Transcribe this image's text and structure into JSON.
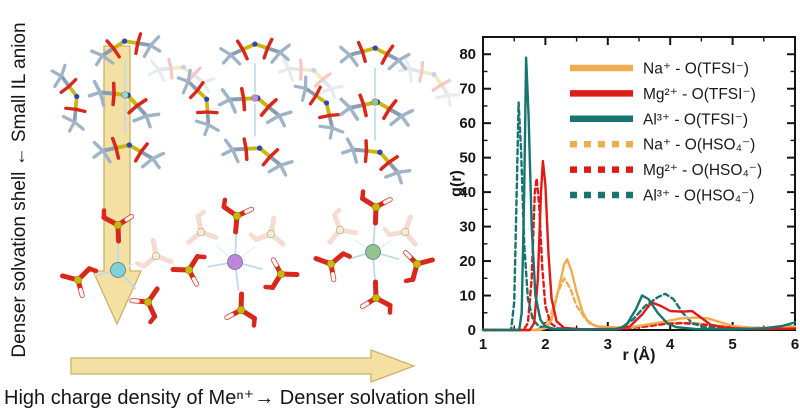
{
  "left_panel": {
    "vertical_label": "Denser solvation shell ← Small IL anion",
    "bottom_caption": "High charge density of Meⁿ⁺→ Denser solvation shell",
    "arrow_fill": "#F5E0A3",
    "arrow_stroke": "#C9B26A",
    "atom_colors": {
      "O": "#D7281B",
      "S": "#C7B70E",
      "N": "#2A46BE",
      "C": "#9FB4C6",
      "C_dark": "#87502F",
      "H": "#F4F4F4",
      "bond": "#BFD9EA",
      "ghost_red": "#F2CFC4",
      "ghost_yellow": "#F0E3CE"
    },
    "clusters": {
      "top_row": [
        {
          "name": "na-tfsi-cluster",
          "cation": "Na+",
          "anion": "TFSI-",
          "center_color": "#8FD8DC"
        },
        {
          "name": "mg-tfsi-cluster",
          "cation": "Mg2+",
          "anion": "TFSI-",
          "center_color": "#C18ADD"
        },
        {
          "name": "al-tfsi-cluster",
          "cation": "Al3+",
          "anion": "TFSI-",
          "center_color": "#93C791"
        }
      ],
      "bottom_row": [
        {
          "name": "na-hso4-cluster",
          "cation": "Na+",
          "anion": "HSO4-",
          "center_color": "#7ED2D8"
        },
        {
          "name": "mg-hso4-cluster",
          "cation": "Mg2+",
          "anion": "HSO4-",
          "center_color": "#BD85DC"
        },
        {
          "name": "al-hso4-cluster",
          "cation": "Al3+",
          "anion": "HSO4-",
          "center_color": "#92C48F"
        }
      ]
    }
  },
  "chart_data": {
    "type": "line",
    "title": "",
    "xlabel": "r (Å)",
    "ylabel": "g(r)",
    "xlim": [
      1,
      6
    ],
    "ylim": [
      0,
      85
    ],
    "xticks": [
      1,
      2,
      3,
      4,
      5,
      6
    ],
    "yticks": [
      0,
      10,
      20,
      30,
      40,
      50,
      60,
      70,
      80
    ],
    "grid": false,
    "legend_position": "upper right",
    "frame_color": "#141414",
    "series": [
      {
        "id": "na_tfsi",
        "label": "Na⁺ - O(TFSI⁻)",
        "color": "#EFAC51",
        "style": "solid",
        "points": [
          [
            1,
            0
          ],
          [
            1.9,
            0
          ],
          [
            2.0,
            0.5
          ],
          [
            2.1,
            3
          ],
          [
            2.2,
            11
          ],
          [
            2.3,
            19
          ],
          [
            2.35,
            20.5
          ],
          [
            2.42,
            17
          ],
          [
            2.5,
            11
          ],
          [
            2.6,
            5
          ],
          [
            2.7,
            2
          ],
          [
            2.85,
            1
          ],
          [
            3.1,
            0.7
          ],
          [
            3.4,
            0.9
          ],
          [
            3.7,
            1.8
          ],
          [
            3.95,
            2.6
          ],
          [
            4.15,
            3.3
          ],
          [
            4.4,
            3.6
          ],
          [
            4.6,
            3.4
          ],
          [
            4.8,
            2.3
          ],
          [
            5.0,
            1.2
          ],
          [
            5.3,
            0.6
          ],
          [
            5.6,
            0.6
          ],
          [
            6,
            1.0
          ]
        ]
      },
      {
        "id": "mg_tfsi",
        "label": "Mg²⁺ - O(TFSI⁻)",
        "color": "#DE1B18",
        "style": "solid",
        "points": [
          [
            1,
            0
          ],
          [
            1.75,
            0
          ],
          [
            1.82,
            2
          ],
          [
            1.88,
            15
          ],
          [
            1.93,
            40
          ],
          [
            1.96,
            49
          ],
          [
            2.0,
            42
          ],
          [
            2.05,
            22
          ],
          [
            2.1,
            9
          ],
          [
            2.18,
            2.5
          ],
          [
            2.3,
            0.6
          ],
          [
            2.6,
            0.2
          ],
          [
            3.1,
            0.3
          ],
          [
            3.35,
            1
          ],
          [
            3.55,
            4.5
          ],
          [
            3.7,
            8
          ],
          [
            3.85,
            7
          ],
          [
            4.0,
            5.5
          ],
          [
            4.2,
            5.3
          ],
          [
            4.35,
            5.5
          ],
          [
            4.5,
            3.5
          ],
          [
            4.65,
            1.5
          ],
          [
            4.9,
            0.6
          ],
          [
            5.3,
            0.3
          ],
          [
            6,
            0.4
          ]
        ]
      },
      {
        "id": "al_tfsi",
        "label": "Al³⁺ - O(TFSI⁻)",
        "color": "#17746F",
        "style": "solid",
        "points": [
          [
            1,
            0
          ],
          [
            1.58,
            0
          ],
          [
            1.62,
            5
          ],
          [
            1.66,
            40
          ],
          [
            1.69,
            79
          ],
          [
            1.73,
            62
          ],
          [
            1.78,
            30
          ],
          [
            1.84,
            10
          ],
          [
            1.92,
            3
          ],
          [
            2.0,
            1
          ],
          [
            2.15,
            0.3
          ],
          [
            2.6,
            0.1
          ],
          [
            3.15,
            0.2
          ],
          [
            3.3,
            1.5
          ],
          [
            3.45,
            6
          ],
          [
            3.55,
            10
          ],
          [
            3.65,
            9
          ],
          [
            3.8,
            5
          ],
          [
            3.95,
            2
          ],
          [
            4.1,
            0.8
          ],
          [
            4.4,
            0.3
          ],
          [
            5.0,
            0.2
          ],
          [
            5.5,
            0.5
          ],
          [
            5.8,
            1.2
          ],
          [
            6,
            2.2
          ]
        ]
      },
      {
        "id": "na_hso4",
        "label": "Na⁺ - O(HSO₄⁻)",
        "color": "#EFAC51",
        "style": "dashed",
        "points": [
          [
            1,
            0
          ],
          [
            1.85,
            0
          ],
          [
            2.0,
            1.5
          ],
          [
            2.1,
            5
          ],
          [
            2.2,
            11
          ],
          [
            2.3,
            15
          ],
          [
            2.4,
            12
          ],
          [
            2.5,
            7
          ],
          [
            2.65,
            3
          ],
          [
            2.8,
            1.2
          ],
          [
            3.1,
            0.7
          ],
          [
            3.5,
            1.0
          ],
          [
            3.8,
            1.8
          ],
          [
            4.1,
            2.1
          ],
          [
            4.4,
            2.0
          ],
          [
            4.7,
            1.4
          ],
          [
            5.0,
            0.9
          ],
          [
            5.5,
            0.6
          ],
          [
            6,
            0.7
          ]
        ]
      },
      {
        "id": "mg_hso4",
        "label": "Mg²⁺ - O(HSO₄⁻)",
        "color": "#DE1B18",
        "style": "dashed",
        "points": [
          [
            1,
            0
          ],
          [
            1.65,
            0
          ],
          [
            1.72,
            2
          ],
          [
            1.78,
            15
          ],
          [
            1.83,
            40
          ],
          [
            1.86,
            44
          ],
          [
            1.9,
            36
          ],
          [
            1.95,
            18
          ],
          [
            2.0,
            7
          ],
          [
            2.08,
            2
          ],
          [
            2.2,
            0.5
          ],
          [
            2.6,
            0.2
          ],
          [
            3.2,
            0.3
          ],
          [
            3.6,
            1.0
          ],
          [
            3.9,
            1.7
          ],
          [
            4.2,
            2.0
          ],
          [
            4.5,
            1.6
          ],
          [
            4.8,
            1.0
          ],
          [
            5.2,
            0.5
          ],
          [
            6,
            0.4
          ]
        ]
      },
      {
        "id": "al_hso4",
        "label": "Al³⁺ - O(HSO₄⁻)",
        "color": "#17746F",
        "style": "dashed",
        "points": [
          [
            1,
            0
          ],
          [
            1.45,
            0
          ],
          [
            1.5,
            8
          ],
          [
            1.54,
            40
          ],
          [
            1.57,
            66
          ],
          [
            1.61,
            52
          ],
          [
            1.66,
            25
          ],
          [
            1.72,
            9
          ],
          [
            1.8,
            3
          ],
          [
            1.9,
            1
          ],
          [
            2.1,
            0.3
          ],
          [
            2.7,
            0.2
          ],
          [
            3.2,
            0.5
          ],
          [
            3.4,
            3
          ],
          [
            3.6,
            7
          ],
          [
            3.8,
            9.5
          ],
          [
            3.92,
            10.5
          ],
          [
            4.05,
            9
          ],
          [
            4.2,
            5
          ],
          [
            4.35,
            2
          ],
          [
            4.55,
            0.8
          ],
          [
            5.0,
            0.3
          ],
          [
            5.6,
            0.4
          ],
          [
            6,
            1.2
          ]
        ]
      }
    ]
  }
}
